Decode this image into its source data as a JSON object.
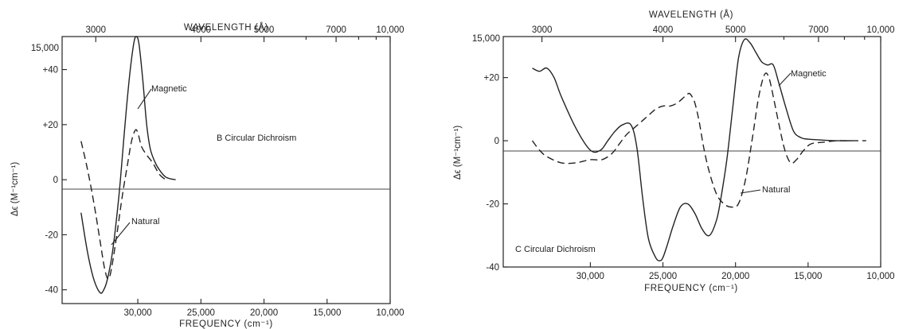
{
  "chart_data": [
    {
      "type": "line",
      "title": "",
      "xlabel": "FREQUENCY (cm⁻¹)",
      "ylabel": "Δϵ (M⁻¹cm⁻¹)",
      "x2label": "WAVELENGTH (Å)",
      "annotation": "B  Circular Dichroism",
      "xlim": [
        36000,
        10000
      ],
      "ylim": [
        -45,
        52
      ],
      "grid": false,
      "x_ticks": [
        30000,
        25000,
        20000,
        15000,
        10000
      ],
      "x_tick_labels": [
        "30,000",
        "25,000",
        "20,000",
        "15,000",
        "10,000"
      ],
      "y_ticks": [
        -40,
        -20,
        0,
        20,
        40
      ],
      "y_tick_labels": [
        "-40",
        "-20",
        "0",
        "+20",
        "+40"
      ],
      "x2_ticks": [
        3000,
        4000,
        5000,
        7000,
        10000
      ],
      "x2_tick_labels": [
        "3000",
        "4000",
        "5000",
        "7000",
        "10,000"
      ],
      "x2_minor_ticks": [
        6000,
        8000,
        9000
      ],
      "corner_label": "15,000",
      "series": [
        {
          "name": "Magnetic",
          "style": "solid",
          "x": [
            34500,
            34000,
            33500,
            33000,
            32700,
            32400,
            32000,
            31500,
            31200,
            30900,
            30600,
            30300,
            30100,
            29900,
            29600,
            29300,
            29000,
            28600,
            28200,
            27800,
            27400,
            27000
          ],
          "y": [
            -12,
            -26,
            -36,
            -41,
            -40,
            -36,
            -26,
            -6,
            10,
            26,
            40,
            50,
            52,
            49,
            36,
            20,
            11,
            6,
            3,
            1,
            0.3,
            0
          ]
        },
        {
          "name": "Natural",
          "style": "dashed",
          "x": [
            34500,
            34000,
            33500,
            33000,
            32600,
            32300,
            32000,
            31600,
            31200,
            30800,
            30500,
            30200,
            30000,
            29700,
            29300,
            28800,
            28300,
            27800
          ],
          "y": [
            14,
            4,
            -8,
            -22,
            -33,
            -36,
            -30,
            -18,
            -5,
            6,
            14,
            18,
            17,
            12,
            9,
            6,
            2,
            0
          ]
        }
      ]
    },
    {
      "type": "line",
      "title": "",
      "xlabel": "FREQUENCY (cm⁻¹)",
      "ylabel": "Δϵ (M⁻¹cm⁻¹)",
      "x2label": "WAVELENGTH (Å)",
      "annotation": "C  Circular Dichroism",
      "xlim": [
        36000,
        10000
      ],
      "ylim": [
        -40,
        33
      ],
      "grid": false,
      "x_ticks": [
        30000,
        25000,
        20000,
        15000,
        10000
      ],
      "x_tick_labels": [
        "30,000",
        "25,000",
        "20,000",
        "15,000",
        "10,000"
      ],
      "y_ticks": [
        -40,
        -20,
        0,
        20
      ],
      "y_tick_labels": [
        "-40",
        "-20",
        "0",
        "+20"
      ],
      "x2_ticks": [
        3000,
        4000,
        5000,
        7000,
        10000
      ],
      "x2_tick_labels": [
        "3000",
        "4000",
        "5000",
        "7000",
        "10,000"
      ],
      "x2_minor_ticks": [
        6000,
        8000,
        9000
      ],
      "corner_label": "15,000",
      "series": [
        {
          "name": "Magnetic",
          "style": "solid",
          "x": [
            34000,
            33500,
            33000,
            32500,
            32000,
            31000,
            30000,
            29300,
            28800,
            28300,
            27800,
            27200,
            26800,
            26400,
            26000,
            25500,
            25200,
            25000,
            24700,
            24300,
            23800,
            23300,
            22800,
            22300,
            21800,
            21300,
            21000,
            20600,
            20200,
            19800,
            19400,
            19000,
            18600,
            18200,
            17800,
            17400,
            17000,
            16500,
            16000,
            15500,
            15000,
            14000,
            13000,
            12000
          ],
          "y": [
            23,
            22,
            23,
            20,
            14,
            4,
            -3,
            -3,
            0,
            3,
            5,
            5,
            -2,
            -18,
            -31,
            -37,
            -38,
            -37,
            -33,
            -27,
            -21,
            -20,
            -23,
            -28,
            -30,
            -25,
            -18,
            -6,
            10,
            26,
            32,
            31,
            28,
            25,
            24,
            24,
            18,
            10,
            3,
            1,
            0.5,
            0.2,
            0,
            0
          ]
        },
        {
          "name": "Natural",
          "style": "dashed",
          "x": [
            34000,
            33500,
            33000,
            32000,
            31000,
            30000,
            29200,
            28500,
            28000,
            27500,
            27000,
            26500,
            26000,
            25500,
            25000,
            24500,
            24000,
            23500,
            23200,
            23000,
            22800,
            22500,
            22200,
            21800,
            21300,
            20800,
            20300,
            19800,
            19300,
            18800,
            18400,
            18000,
            17700,
            17400,
            17000,
            16600,
            16200,
            15800,
            15300,
            14800,
            14000,
            13000,
            12000,
            11000
          ],
          "y": [
            0,
            -3,
            -5,
            -7,
            -7,
            -6,
            -6,
            -4,
            -1,
            2,
            4,
            6,
            8,
            10,
            11,
            11,
            12,
            14,
            15,
            14,
            12,
            6,
            -2,
            -10,
            -17,
            -20,
            -21,
            -20,
            -12,
            2,
            14,
            21,
            20,
            14,
            5,
            -3,
            -7,
            -6,
            -3,
            -1,
            -0.5,
            0,
            0,
            0
          ]
        }
      ]
    }
  ]
}
